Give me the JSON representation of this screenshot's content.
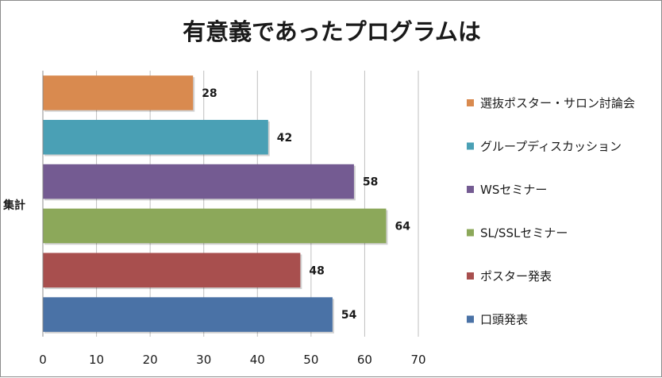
{
  "chart_data": {
    "type": "bar",
    "orientation": "horizontal",
    "title": "有意義であったプログラムは",
    "category_label": "集計",
    "xlim": [
      0,
      70
    ],
    "x_ticks": [
      0,
      10,
      20,
      30,
      40,
      50,
      60,
      70
    ],
    "grid": true,
    "legend_position": "right",
    "series": [
      {
        "name": "選抜ポスター・サロン討論会",
        "value": 28,
        "color": "#d98a4f"
      },
      {
        "name": "グループディスカッション",
        "value": 42,
        "color": "#4aa0b5"
      },
      {
        "name": "WSセミナー",
        "value": 58,
        "color": "#745b92"
      },
      {
        "name": "SL/SSLセミナー",
        "value": 64,
        "color": "#8ca85a"
      },
      {
        "name": "ポスター発表",
        "value": 48,
        "color": "#a84f4e"
      },
      {
        "name": "口頭発表",
        "value": 54,
        "color": "#4a72a6"
      }
    ]
  }
}
